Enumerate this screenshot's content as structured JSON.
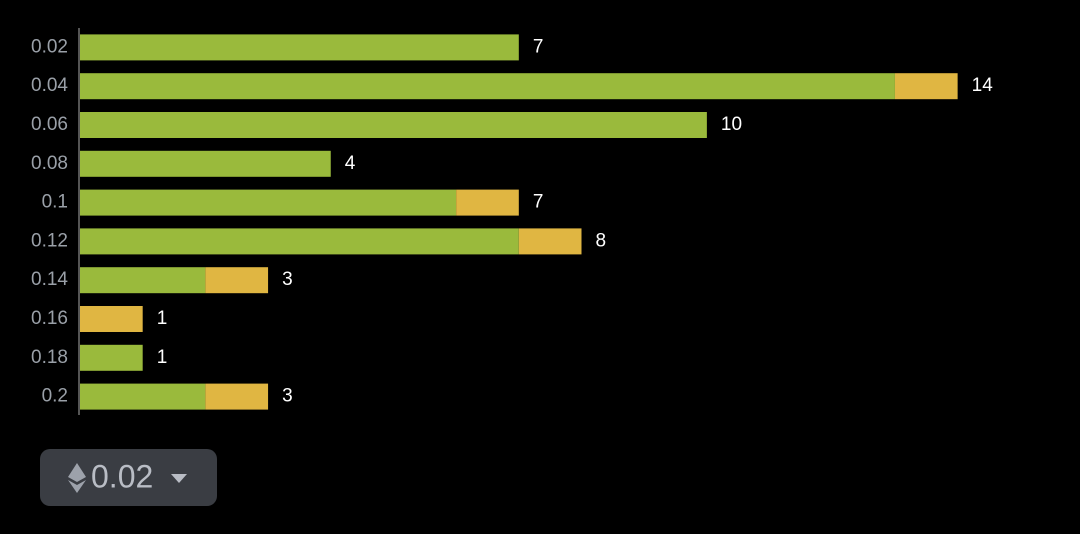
{
  "chart_data": {
    "type": "stacked-barh",
    "categories": [
      "0.02",
      "0.04",
      "0.06",
      "0.08",
      "0.1",
      "0.12",
      "0.14",
      "0.16",
      "0.18",
      "0.2"
    ],
    "series": [
      {
        "color": "#9aba3c",
        "values": [
          7,
          13,
          10,
          4,
          6,
          7,
          2,
          0,
          1,
          2
        ]
      },
      {
        "color": "#e0b642",
        "values": [
          0,
          1,
          0,
          0,
          1,
          1,
          1,
          1,
          0,
          1
        ]
      }
    ],
    "totals": [
      7,
      14,
      10,
      4,
      7,
      8,
      3,
      1,
      1,
      3
    ],
    "xlim": [
      0,
      16
    ]
  },
  "selector": {
    "label": "0.02"
  }
}
